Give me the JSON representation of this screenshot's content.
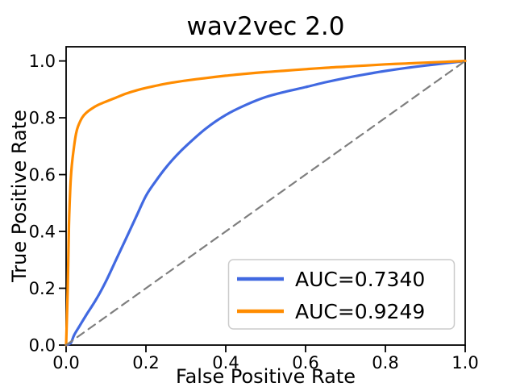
{
  "chart_data": {
    "type": "line",
    "title": "wav2vec 2.0",
    "xlabel": "False Positive Rate",
    "ylabel": "True Positive Rate",
    "xlim": [
      0.0,
      1.0
    ],
    "ylim": [
      0.0,
      1.05
    ],
    "xticks": [
      0.0,
      0.2,
      0.4,
      0.6,
      0.8,
      1.0
    ],
    "yticks": [
      0.0,
      0.2,
      0.4,
      0.6,
      0.8,
      1.0
    ],
    "xtick_labels": [
      "0.0",
      "0.2",
      "0.4",
      "0.6",
      "0.8",
      "1.0"
    ],
    "ytick_labels": [
      "0.0",
      "0.2",
      "0.4",
      "0.6",
      "0.8",
      "1.0"
    ],
    "grid": false,
    "colors": {
      "curve_1": "#4169e1",
      "curve_2": "#ff8c00",
      "chance_line": "#7f7f7f",
      "spine": "#000000",
      "legend_border": "#cccccc",
      "legend_background": "#ffffff"
    },
    "series": [
      {
        "name": "AUC=0.7340",
        "color": "#4169e1",
        "line_style": "solid",
        "line_width": 3.2,
        "in_legend": true,
        "points": [
          [
            0,
            0
          ],
          [
            0.012,
            0.008
          ],
          [
            0.02,
            0.035
          ],
          [
            0.035,
            0.07
          ],
          [
            0.05,
            0.105
          ],
          [
            0.075,
            0.16
          ],
          [
            0.1,
            0.225
          ],
          [
            0.125,
            0.3
          ],
          [
            0.15,
            0.375
          ],
          [
            0.175,
            0.45
          ],
          [
            0.2,
            0.525
          ],
          [
            0.225,
            0.578
          ],
          [
            0.25,
            0.625
          ],
          [
            0.275,
            0.665
          ],
          [
            0.3,
            0.7
          ],
          [
            0.35,
            0.762
          ],
          [
            0.4,
            0.81
          ],
          [
            0.45,
            0.845
          ],
          [
            0.5,
            0.873
          ],
          [
            0.55,
            0.892
          ],
          [
            0.6,
            0.908
          ],
          [
            0.65,
            0.925
          ],
          [
            0.7,
            0.94
          ],
          [
            0.75,
            0.953
          ],
          [
            0.8,
            0.965
          ],
          [
            0.85,
            0.975
          ],
          [
            0.9,
            0.984
          ],
          [
            0.95,
            0.992
          ],
          [
            1,
            1
          ]
        ]
      },
      {
        "name": "AUC=0.9249",
        "color": "#ff8c00",
        "line_style": "solid",
        "line_width": 3.2,
        "in_legend": true,
        "points": [
          [
            0,
            0
          ],
          [
            0.004,
            0.2
          ],
          [
            0.007,
            0.42
          ],
          [
            0.01,
            0.54
          ],
          [
            0.013,
            0.61
          ],
          [
            0.016,
            0.655
          ],
          [
            0.02,
            0.7
          ],
          [
            0.025,
            0.745
          ],
          [
            0.03,
            0.77
          ],
          [
            0.04,
            0.8
          ],
          [
            0.05,
            0.817
          ],
          [
            0.065,
            0.833
          ],
          [
            0.08,
            0.845
          ],
          [
            0.1,
            0.857
          ],
          [
            0.125,
            0.871
          ],
          [
            0.15,
            0.885
          ],
          [
            0.175,
            0.896
          ],
          [
            0.2,
            0.905
          ],
          [
            0.25,
            0.92
          ],
          [
            0.3,
            0.931
          ],
          [
            0.35,
            0.94
          ],
          [
            0.4,
            0.948
          ],
          [
            0.45,
            0.955
          ],
          [
            0.5,
            0.961
          ],
          [
            0.55,
            0.966
          ],
          [
            0.6,
            0.971
          ],
          [
            0.65,
            0.976
          ],
          [
            0.7,
            0.98
          ],
          [
            0.75,
            0.984
          ],
          [
            0.8,
            0.988
          ],
          [
            0.85,
            0.991
          ],
          [
            0.9,
            0.994
          ],
          [
            0.95,
            0.997
          ],
          [
            1,
            1
          ]
        ]
      },
      {
        "name": "chance-diagonal",
        "color": "#7f7f7f",
        "line_style": "dashed",
        "line_width": 2.2,
        "in_legend": false,
        "points": [
          [
            0,
            0
          ],
          [
            1,
            1
          ]
        ]
      }
    ],
    "legend": {
      "position": "lower right",
      "entries": [
        {
          "label": "AUC=0.7340",
          "color": "#4169e1"
        },
        {
          "label": "AUC=0.9249",
          "color": "#ff8c00"
        }
      ]
    }
  }
}
